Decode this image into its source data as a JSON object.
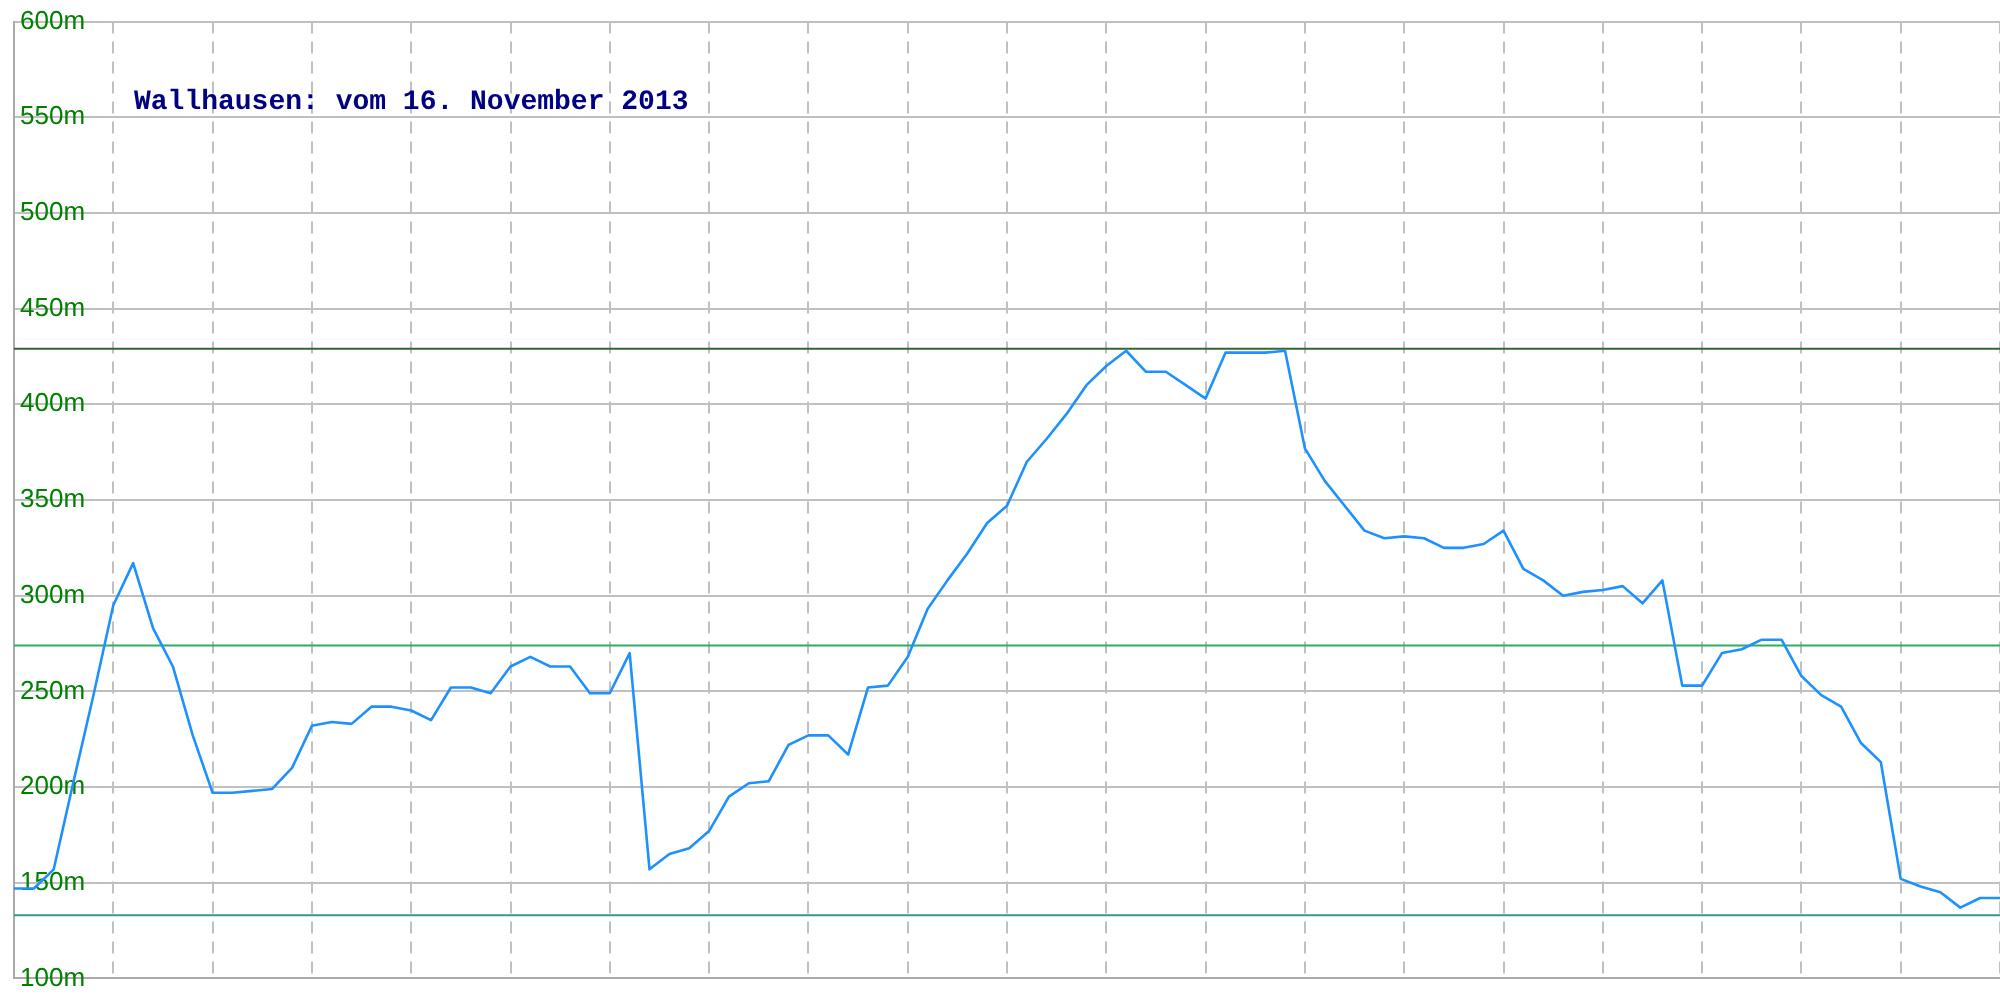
{
  "chart_data": {
    "type": "line",
    "title": "Wallhausen: vom 16. November 2013",
    "categories": [
      null,
      null,
      null,
      null,
      null,
      null,
      null,
      null,
      null,
      null,
      null,
      null,
      null,
      null,
      null,
      null,
      null,
      null,
      null,
      null,
      null,
      null,
      null,
      null,
      null,
      null,
      null,
      null,
      null,
      null,
      null,
      null,
      null,
      null,
      null,
      null,
      null,
      null,
      null,
      null,
      null,
      null,
      null,
      null,
      null,
      null,
      null,
      null,
      null,
      null,
      null,
      null,
      null,
      null,
      null,
      null,
      null,
      null,
      null,
      null,
      null,
      null,
      null,
      null,
      null,
      null,
      null,
      null,
      null,
      null,
      null,
      null,
      null,
      null,
      null,
      null,
      null,
      null,
      null,
      null,
      null,
      null,
      null,
      null,
      null,
      null,
      null,
      null,
      null,
      null,
      null,
      null,
      null,
      null,
      null,
      null,
      null,
      null,
      null,
      null,
      null
    ],
    "series": [
      {
        "color": "#1e90ff",
        "values": [
          147,
          147,
          157,
          203,
          248,
          295,
          317,
          283,
          263,
          227,
          197,
          197,
          198,
          199,
          210,
          232,
          234,
          233,
          242,
          242,
          240,
          235,
          252,
          252,
          249,
          263,
          268,
          263,
          263,
          249,
          249,
          270,
          157,
          165,
          168,
          177,
          195,
          202,
          203,
          222,
          227,
          227,
          217,
          252,
          253,
          268,
          293,
          308,
          322,
          338,
          347,
          370,
          382,
          395,
          410,
          420,
          428,
          417,
          417,
          410,
          403,
          427,
          427,
          427,
          428,
          377,
          360,
          347,
          334,
          330,
          331,
          330,
          325,
          325,
          327,
          334,
          314,
          308,
          300,
          302,
          303,
          305,
          296,
          308,
          253,
          253,
          270,
          272,
          277,
          277,
          258,
          248,
          242,
          223,
          213,
          152,
          148,
          145,
          137,
          142,
          142
        ]
      }
    ],
    "ylim": [
      100,
      600
    ],
    "yticks": [
      {
        "value": 100,
        "label": "100m"
      },
      {
        "value": 150,
        "label": "150m"
      },
      {
        "value": 200,
        "label": "200m"
      },
      {
        "value": 250,
        "label": "250m"
      },
      {
        "value": 300,
        "label": "300m"
      },
      {
        "value": 350,
        "label": "350m"
      },
      {
        "value": 400,
        "label": "400m"
      },
      {
        "value": 450,
        "label": "450m"
      },
      {
        "value": 500,
        "label": "500m"
      },
      {
        "value": 550,
        "label": "550m"
      },
      {
        "value": 600,
        "label": "600m"
      }
    ],
    "ref_lines": [
      {
        "axis": "y",
        "value": 429,
        "color": "#336633"
      },
      {
        "axis": "y",
        "value": 274,
        "color": "#33aa66"
      },
      {
        "axis": "y",
        "value": 133,
        "color": "#339999"
      }
    ],
    "grid": true,
    "legend": false,
    "marker": "none",
    "line_style": "solid",
    "tick_labels": "y"
  }
}
